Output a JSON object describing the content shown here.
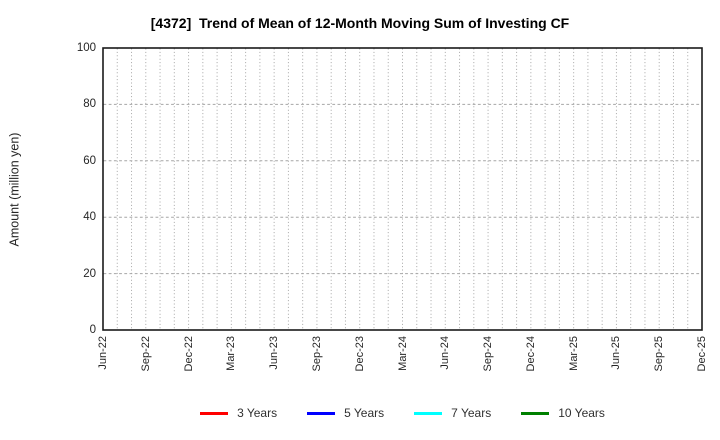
{
  "chart_data": {
    "type": "line",
    "title": "[4372]  Trend of Mean of 12-Month Moving Sum of Investing CF",
    "xlabel": "",
    "ylabel": "Amount (million yen)",
    "ylim": [
      0,
      100
    ],
    "yticks": [
      0,
      20,
      40,
      60,
      80,
      100
    ],
    "x_tick_labels": [
      "Jun-22",
      "Sep-22",
      "Dec-22",
      "Mar-23",
      "Jun-23",
      "Sep-23",
      "Dec-23",
      "Mar-24",
      "Jun-24",
      "Sep-24",
      "Dec-24",
      "Mar-25",
      "Jun-25",
      "Sep-25",
      "Dec-25"
    ],
    "x_months_per_labeled_tick": 3,
    "x_minor_grid_interval": "monthly",
    "grid": true,
    "legend_position": "bottom",
    "series": [
      {
        "name": "3 Years",
        "color": "#ff0000",
        "values": []
      },
      {
        "name": "5 Years",
        "color": "#0000ff",
        "values": []
      },
      {
        "name": "7 Years",
        "color": "#00ffff",
        "values": []
      },
      {
        "name": "10 Years",
        "color": "#008000",
        "values": []
      }
    ]
  },
  "colors": {
    "grid": "#a6a6a6",
    "frame": "#1a1a1a",
    "tick_text": "#262626",
    "background": "#ffffff"
  }
}
